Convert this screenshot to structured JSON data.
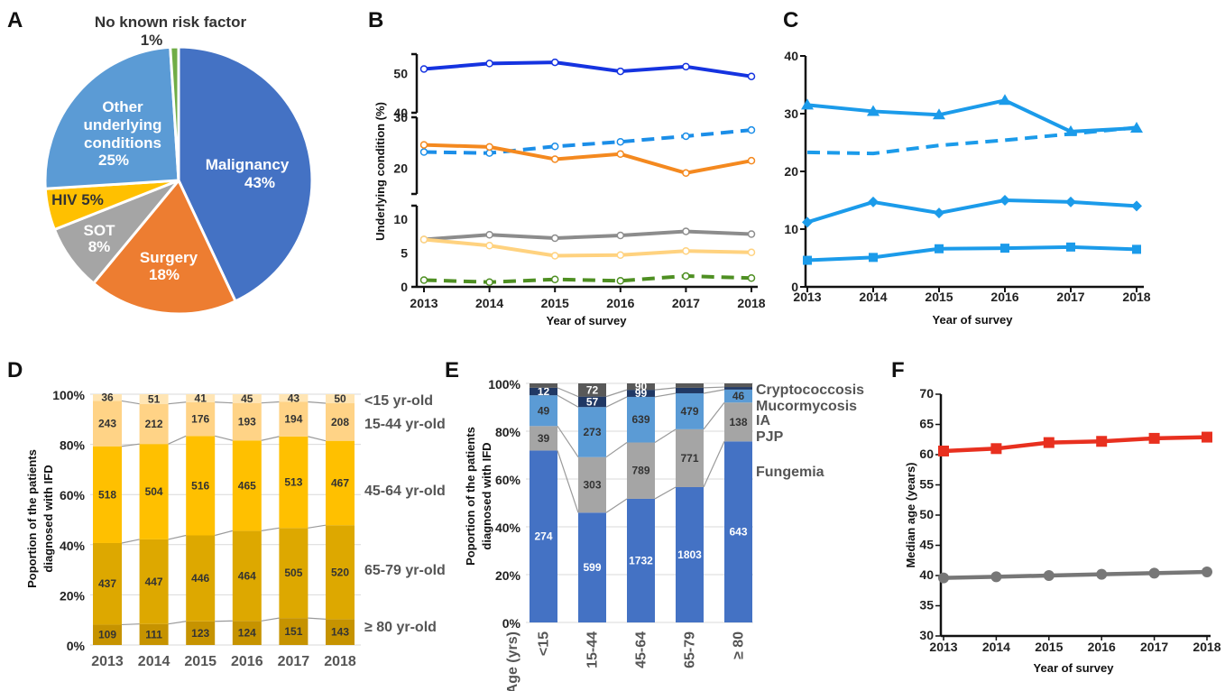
{
  "panels": {
    "a": "A",
    "b": "B",
    "c": "C",
    "d": "D",
    "e": "E",
    "f": "F"
  },
  "chart_data": [
    {
      "id": "A",
      "type": "pie",
      "slices": [
        {
          "label": "Malignancy",
          "pct": "43%",
          "value": 43,
          "color": "#4472C4"
        },
        {
          "label": "Surgery",
          "pct": "18%",
          "value": 18,
          "color": "#ED7D31"
        },
        {
          "label": "SOT",
          "pct": "8%",
          "value": 8,
          "color": "#A5A5A5"
        },
        {
          "label": "HIV",
          "pct": "5%",
          "value": 5,
          "color": "#FFC000"
        },
        {
          "label": "Other underlying conditions",
          "pct": "25%",
          "value": 25,
          "color": "#5B9BD5"
        },
        {
          "label": "No known risk factor",
          "pct": "1%",
          "value": 1,
          "color": "#70AD47"
        }
      ]
    },
    {
      "id": "B",
      "type": "line",
      "xlabel": "Year of survey",
      "ylabel": "Underlying condition (%)",
      "x": [
        "2013",
        "2014",
        "2015",
        "2016",
        "2017",
        "2018"
      ],
      "y_ticks_top": [
        "40",
        "50"
      ],
      "y_ticks_mid": [
        "20",
        "30"
      ],
      "y_ticks_low": [
        "0",
        "5",
        "10"
      ],
      "series": [
        {
          "color": "#1533E0",
          "dashed": false,
          "values": [
            51.2,
            52.6,
            52.9,
            50.6,
            51.8,
            49.3
          ]
        },
        {
          "color": "#1B8EE8",
          "dashed": true,
          "values": [
            23.2,
            23.0,
            24.3,
            25.2,
            26.3,
            27.5
          ]
        },
        {
          "color": "#F4891F",
          "dashed": false,
          "values": [
            24.6,
            24.2,
            21.8,
            22.8,
            19.1,
            21.5
          ]
        },
        {
          "color": "#8C8C8C",
          "dashed": false,
          "values": [
            7.0,
            7.7,
            7.2,
            7.6,
            8.2,
            7.8
          ]
        },
        {
          "color": "#FFD27F",
          "dashed": false,
          "values": [
            7.0,
            6.1,
            4.6,
            4.7,
            5.3,
            5.1
          ]
        },
        {
          "color": "#4E8F22",
          "dashed": true,
          "values": [
            1.0,
            0.7,
            1.1,
            0.9,
            1.6,
            1.3
          ]
        }
      ]
    },
    {
      "id": "C",
      "type": "line",
      "xlabel": "Year of survey",
      "x": [
        "2013",
        "2014",
        "2015",
        "2016",
        "2017",
        "2018"
      ],
      "ylim": [
        0,
        40
      ],
      "y_ticks": [
        "0",
        "10",
        "20",
        "30",
        "40"
      ],
      "series": [
        {
          "marker": "triangle",
          "dashed": false,
          "values": [
            31.5,
            30.4,
            29.8,
            32.3,
            26.9,
            27.5
          ]
        },
        {
          "marker": "none",
          "dashed": true,
          "values": [
            23.3,
            23.1,
            24.5,
            25.4,
            26.5,
            27.6
          ]
        },
        {
          "marker": "diamond",
          "dashed": false,
          "values": [
            11.2,
            14.7,
            12.8,
            15.0,
            14.7,
            14.0
          ]
        },
        {
          "marker": "square",
          "dashed": false,
          "values": [
            4.6,
            5.1,
            6.6,
            6.7,
            6.9,
            6.5
          ]
        }
      ]
    },
    {
      "id": "D",
      "type": "bar",
      "stacked": true,
      "ylabel": "Poportion of the patients diagnosed with IFD",
      "categories": [
        "2013",
        "2014",
        "2015",
        "2016",
        "2017",
        "2018"
      ],
      "y_ticks": [
        "0%",
        "20%",
        "40%",
        "60%",
        "80%",
        "100%"
      ],
      "series": [
        {
          "name": "≥ 80 yr-old",
          "color": "#C69300",
          "values": [
            109,
            111,
            123,
            124,
            151,
            143
          ]
        },
        {
          "name": "65-79 yr-old",
          "color": "#DDA800",
          "values": [
            437,
            447,
            446,
            464,
            505,
            520
          ]
        },
        {
          "name": "45-64 yr-old",
          "color": "#FFC000",
          "values": [
            518,
            504,
            516,
            465,
            513,
            467
          ]
        },
        {
          "name": "15-44 yr-old",
          "color": "#FFD386",
          "values": [
            243,
            212,
            176,
            193,
            194,
            208
          ]
        },
        {
          "name": "<15 yr-old",
          "color": "#FFE5B4",
          "values": [
            36,
            51,
            41,
            45,
            43,
            50
          ]
        }
      ]
    },
    {
      "id": "E",
      "type": "bar",
      "stacked": true,
      "ylabel": "Poportion of the patients diagnosed with IFD",
      "xlabel": "Age (yrs)",
      "categories": [
        "<15",
        "15-44",
        "45-64",
        "65-79",
        "≥ 80"
      ],
      "y_ticks": [
        "0%",
        "20%",
        "40%",
        "60%",
        "80%",
        "100%"
      ],
      "series": [
        {
          "name": "Fungemia",
          "color": "#4472C4",
          "values": [
            274,
            599,
            1732,
            1803,
            643
          ]
        },
        {
          "name": "PJP",
          "color": "#A5A5A5",
          "values": [
            39,
            303,
            789,
            771,
            138
          ]
        },
        {
          "name": "IA",
          "color": "#5B9BD5",
          "values": [
            49,
            273,
            639,
            479,
            46
          ]
        },
        {
          "name": "Mucormycosis",
          "color": "#203864",
          "values": [
            12,
            57,
            99,
            73,
            9
          ]
        },
        {
          "name": "Cryptococcosis",
          "color": "#595959",
          "values": [
            7,
            72,
            90,
            59,
            13
          ]
        }
      ]
    },
    {
      "id": "F",
      "type": "line",
      "xlabel": "Year of survey",
      "ylabel": "Median age (years)",
      "x": [
        "2013",
        "2014",
        "2015",
        "2016",
        "2017",
        "2018"
      ],
      "ylim": [
        30,
        70
      ],
      "y_ticks": [
        "30",
        "35",
        "40",
        "45",
        "50",
        "55",
        "60",
        "65",
        "70"
      ],
      "series": [
        {
          "color": "#E8301F",
          "marker": "square",
          "values": [
            60.6,
            61.0,
            62.0,
            62.2,
            62.7,
            62.9
          ]
        },
        {
          "color": "#777777",
          "marker": "circle",
          "values": [
            39.6,
            39.8,
            40.0,
            40.2,
            40.4,
            40.6
          ]
        }
      ]
    }
  ]
}
